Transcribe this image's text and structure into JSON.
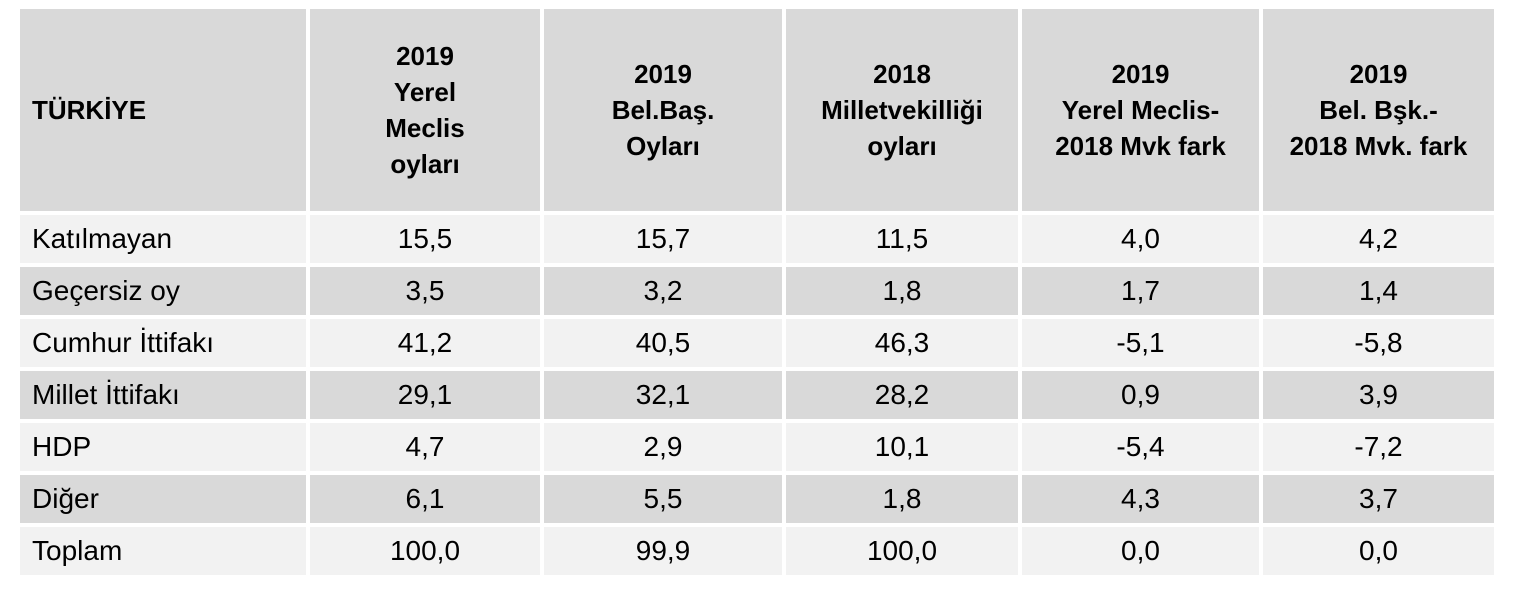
{
  "table": {
    "header": {
      "first": "TÜRKİYE",
      "columns": [
        [
          "2019",
          "Yerel",
          "Meclis",
          "oyları"
        ],
        [
          "2019",
          "Bel.Baş.",
          "Oyları"
        ],
        [
          "2018",
          "Milletvekilliği",
          "oyları"
        ],
        [
          "2019",
          "Yerel Meclis-",
          "2018 Mvk fark"
        ],
        [
          "2019",
          "Bel. Bşk.-",
          "2018 Mvk. fark"
        ]
      ]
    },
    "rows": [
      {
        "label": "Katılmayan",
        "values": [
          "15,5",
          "15,7",
          "11,5",
          "4,0",
          "4,2"
        ]
      },
      {
        "label": "Geçersiz oy",
        "values": [
          "3,5",
          "3,2",
          "1,8",
          "1,7",
          "1,4"
        ]
      },
      {
        "label": "Cumhur İttifakı",
        "values": [
          "41,2",
          "40,5",
          "46,3",
          "-5,1",
          "-5,8"
        ]
      },
      {
        "label": "Millet İttifakı",
        "values": [
          "29,1",
          "32,1",
          "28,2",
          "0,9",
          "3,9"
        ]
      },
      {
        "label": "HDP",
        "values": [
          "4,7",
          "2,9",
          "10,1",
          "-5,4",
          "-7,2"
        ]
      },
      {
        "label": "Diğer",
        "values": [
          "6,1",
          "5,5",
          "1,8",
          "4,3",
          "3,7"
        ]
      },
      {
        "label": "Toplam",
        "values": [
          "100,0",
          "99,9",
          "100,0",
          "0,0",
          "0,0"
        ]
      }
    ]
  },
  "colors": {
    "header_bg": "#d9d9d9",
    "row_light": "#f2f2f2",
    "row_dark": "#d9d9d9"
  }
}
